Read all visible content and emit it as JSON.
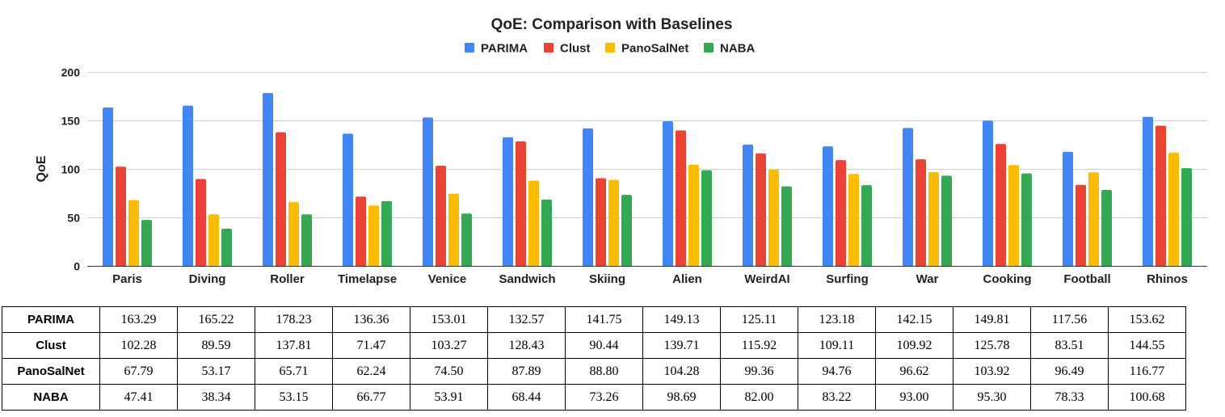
{
  "chart_data": {
    "type": "bar",
    "title": "QoE: Comparison with Baselines",
    "xlabel": "",
    "ylabel": "QoE",
    "ylim": [
      0,
      200
    ],
    "yticks": [
      0,
      50,
      100,
      150,
      200
    ],
    "grid": true,
    "legend_position": "top-center",
    "categories": [
      "Paris",
      "Diving",
      "Roller",
      "Timelapse",
      "Venice",
      "Sandwich",
      "Skiing",
      "Alien",
      "WeirdAI",
      "Surfing",
      "War",
      "Cooking",
      "Football",
      "Rhinos"
    ],
    "series": [
      {
        "name": "PARIMA",
        "color": "#4285f4",
        "values": [
          163.29,
          165.22,
          178.23,
          136.36,
          153.01,
          132.57,
          141.75,
          149.13,
          125.11,
          123.18,
          142.15,
          149.81,
          117.56,
          153.62
        ]
      },
      {
        "name": "Clust",
        "color": "#ea4335",
        "values": [
          102.28,
          89.59,
          137.81,
          71.47,
          103.27,
          128.43,
          90.44,
          139.71,
          115.92,
          109.11,
          109.92,
          125.78,
          83.51,
          144.55
        ]
      },
      {
        "name": "PanoSalNet",
        "color": "#fbbc04",
        "values": [
          67.79,
          53.17,
          65.71,
          62.24,
          74.5,
          87.89,
          88.8,
          104.28,
          99.36,
          94.76,
          96.62,
          103.92,
          96.49,
          116.77
        ]
      },
      {
        "name": "NABA",
        "color": "#34a853",
        "values": [
          47.41,
          38.34,
          53.15,
          66.77,
          53.91,
          68.44,
          73.26,
          98.69,
          82.0,
          83.22,
          93.0,
          95.3,
          78.33,
          100.68
        ]
      }
    ]
  },
  "table": {
    "rows": [
      {
        "label": "PARIMA",
        "cells": [
          "163.29",
          "165.22",
          "178.23",
          "136.36",
          "153.01",
          "132.57",
          "141.75",
          "149.13",
          "125.11",
          "123.18",
          "142.15",
          "149.81",
          "117.56",
          "153.62"
        ]
      },
      {
        "label": "Clust",
        "cells": [
          "102.28",
          "89.59",
          "137.81",
          "71.47",
          "103.27",
          "128.43",
          "90.44",
          "139.71",
          "115.92",
          "109.11",
          "109.92",
          "125.78",
          "83.51",
          "144.55"
        ]
      },
      {
        "label": "PanoSalNet",
        "cells": [
          "67.79",
          "53.17",
          "65.71",
          "62.24",
          "74.50",
          "87.89",
          "88.80",
          "104.28",
          "99.36",
          "94.76",
          "96.62",
          "103.92",
          "96.49",
          "116.77"
        ]
      },
      {
        "label": "NABA",
        "cells": [
          "47.41",
          "38.34",
          "53.15",
          "66.77",
          "53.91",
          "68.44",
          "73.26",
          "98.69",
          "82.00",
          "83.22",
          "93.00",
          "95.30",
          "78.33",
          "100.68"
        ]
      }
    ]
  }
}
